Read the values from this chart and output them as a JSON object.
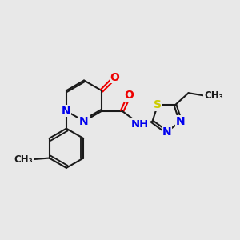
{
  "bg_color": "#e8e8e8",
  "bond_color": "#1a1a1a",
  "N_color": "#0000ee",
  "O_color": "#ee0000",
  "S_color": "#cccc00",
  "bond_width": 1.5,
  "font_size_atom": 10,
  "font_size_small": 8.5,
  "xlim": [
    0,
    10
  ],
  "ylim": [
    0,
    10
  ]
}
